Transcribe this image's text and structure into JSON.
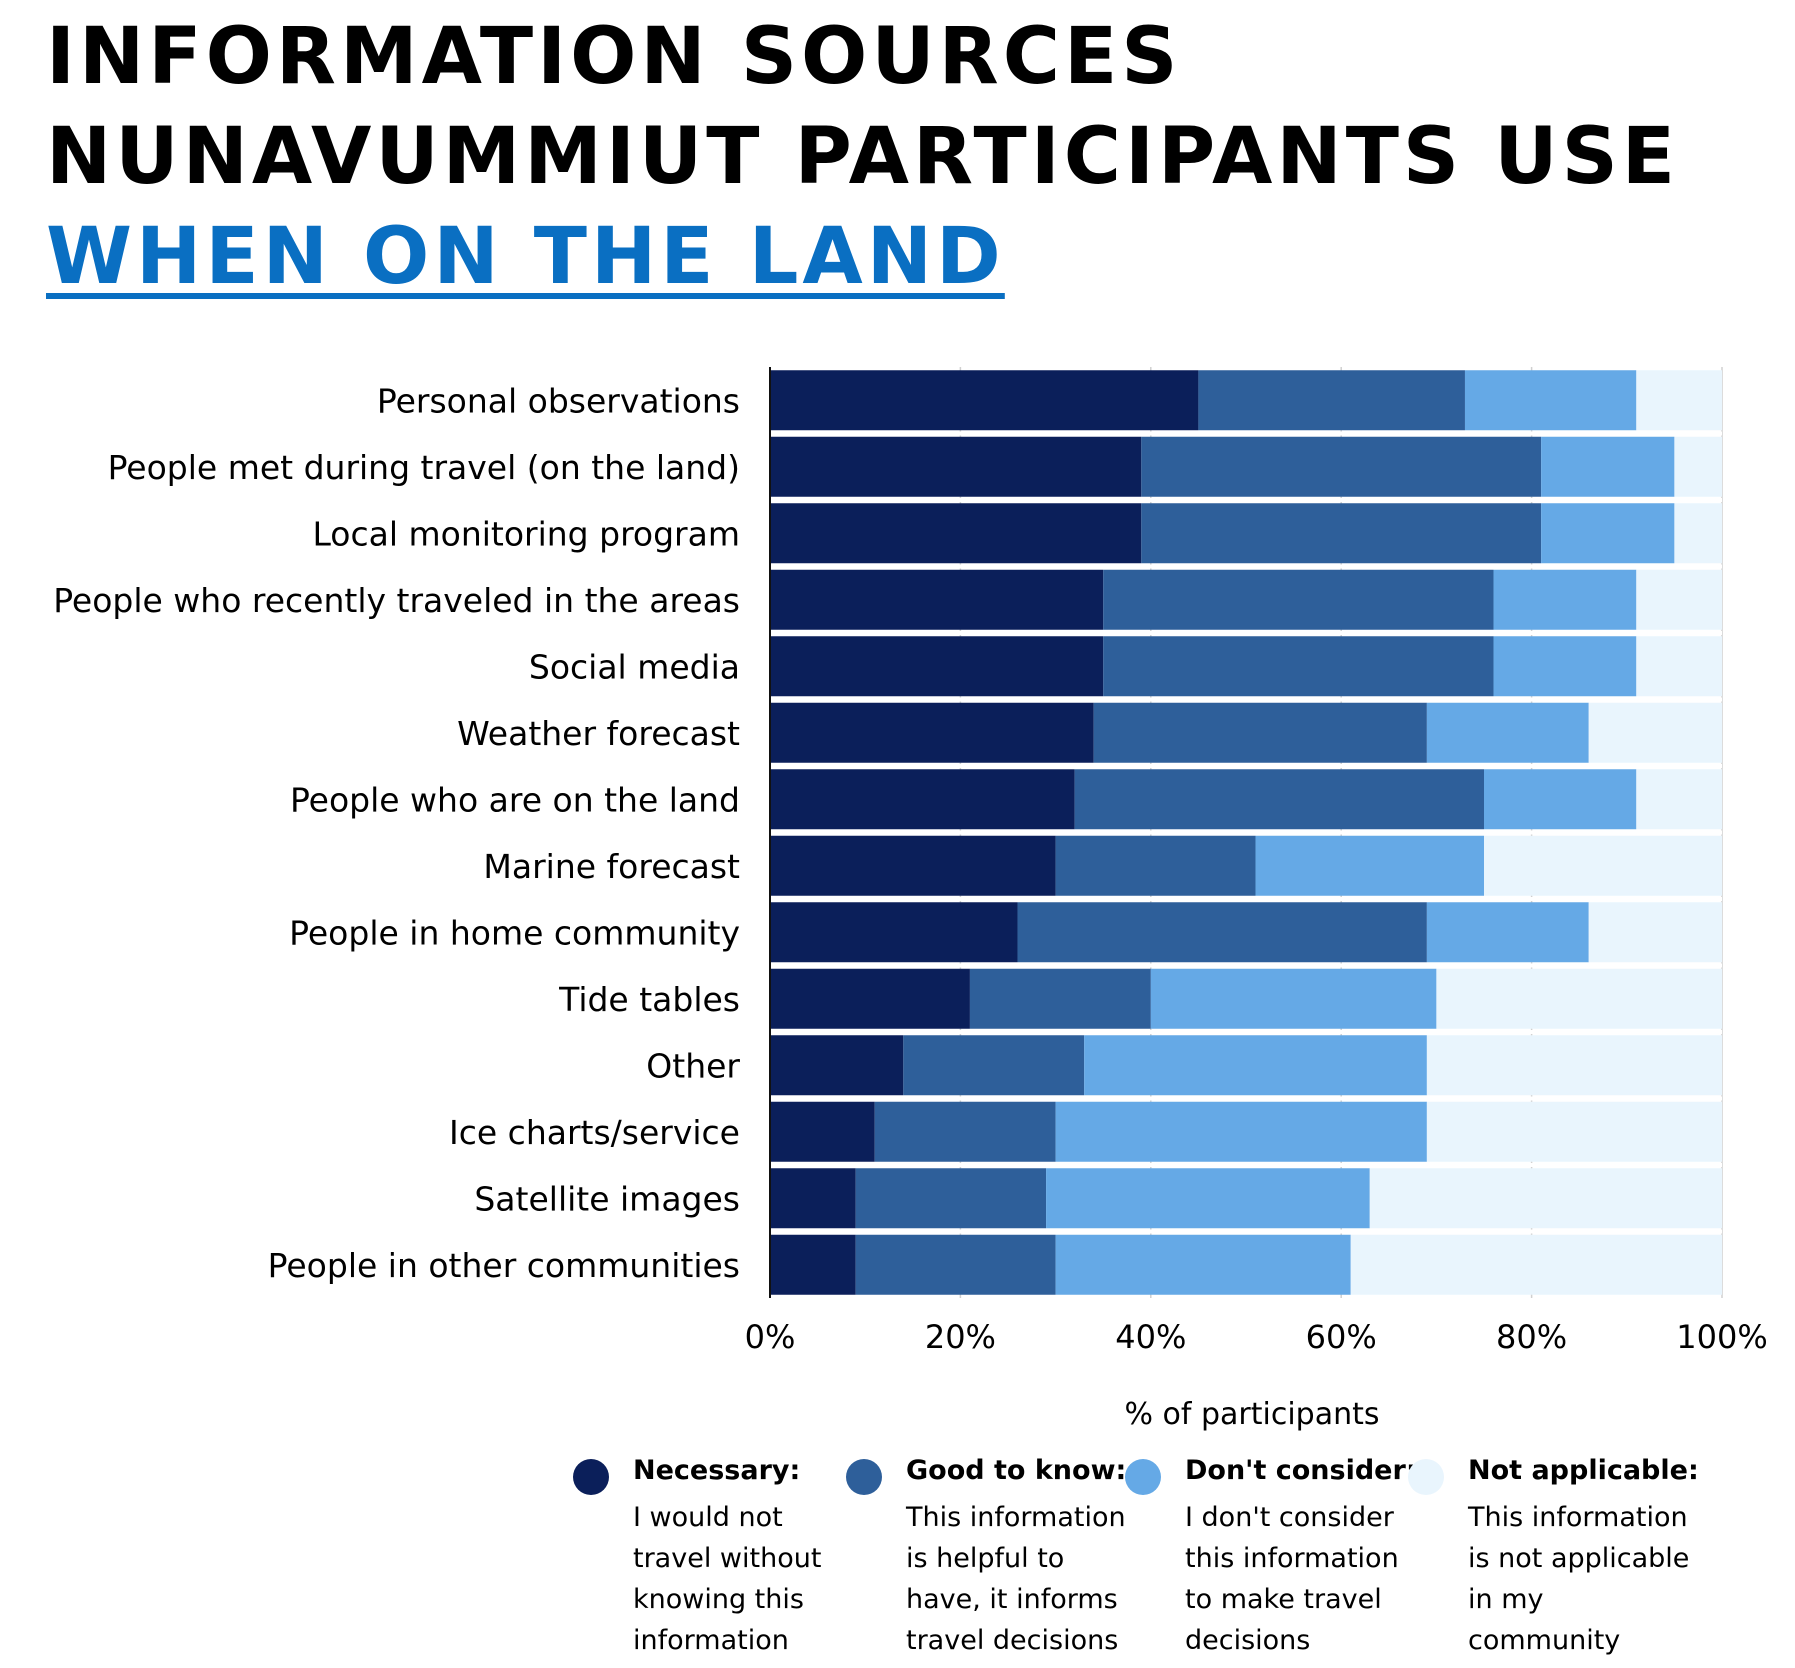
{
  "title": {
    "line1": "INFORMATION SOURCES",
    "line2": "NUNAVUMMIUT PARTICIPANTS USE",
    "line3": "WHEN ON THE LAND"
  },
  "chart_data": {
    "type": "bar",
    "orientation": "horizontal",
    "stacked": true,
    "xlabel": "% of participants",
    "xlim": [
      0,
      100
    ],
    "xticks": [
      0,
      20,
      40,
      60,
      80,
      100
    ],
    "xtick_labels": [
      "0%",
      "20%",
      "40%",
      "60%",
      "80%",
      "100%"
    ],
    "grid": true,
    "categories": [
      "Personal observations",
      "People met during travel (on the land)",
      "Local monitoring program",
      "People who recently traveled in the areas",
      "Social media",
      "Weather forecast",
      "People who are on the land",
      "Marine forecast",
      "People in home community",
      "Tide tables",
      "Other",
      "Ice charts/service",
      "Satellite images",
      "People in other communities"
    ],
    "series": [
      {
        "name": "Necessary",
        "color": "#0b1f5a",
        "values": [
          45,
          39,
          39,
          35,
          35,
          34,
          32,
          30,
          26,
          21,
          14,
          11,
          9,
          9
        ]
      },
      {
        "name": "Good to know",
        "color": "#2e5f9a",
        "values": [
          28,
          42,
          42,
          41,
          41,
          35,
          43,
          21,
          43,
          19,
          19,
          19,
          20,
          21
        ]
      },
      {
        "name": "Don't consider",
        "color": "#65a9e6",
        "values": [
          18,
          14,
          14,
          15,
          15,
          17,
          16,
          24,
          17,
          30,
          36,
          39,
          34,
          31
        ]
      },
      {
        "name": "Not applicable",
        "color": "#e9f5fd",
        "values": [
          9,
          5,
          5,
          9,
          9,
          14,
          9,
          25,
          14,
          30,
          31,
          31,
          37,
          39
        ]
      }
    ]
  },
  "legend": [
    {
      "label": "Necessary",
      "description": "I would not\ntravel without\nknowing this\ninformation",
      "color": "#0b1f5a"
    },
    {
      "label": "Good to know",
      "description": "This information\nis helpful to\nhave, it informs\ntravel decisions",
      "color": "#2e5f9a"
    },
    {
      "label": "Don't consider",
      "description": "I don't consider\nthis information\nto make travel\ndecisions",
      "color": "#65a9e6"
    },
    {
      "label": "Not applicable",
      "description": "This information\nis not applicable\nin my community",
      "color": "#e9f5fd"
    }
  ]
}
